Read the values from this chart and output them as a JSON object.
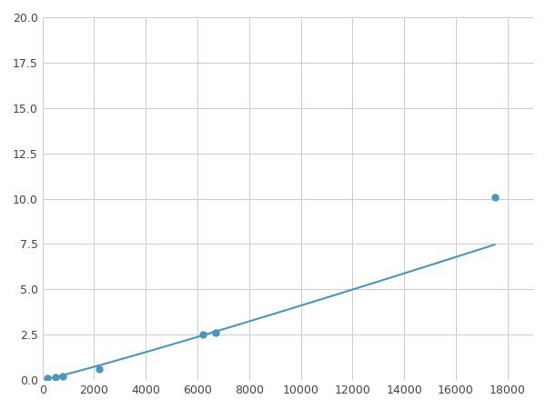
{
  "x": [
    200,
    500,
    800,
    2200,
    6200,
    6700,
    17500
  ],
  "y": [
    0.1,
    0.15,
    0.2,
    0.6,
    2.5,
    2.6,
    10.1
  ],
  "line_color": "#4a96bc",
  "marker_color": "#4a96bc",
  "marker_size": 5,
  "line_width": 1.5,
  "xlim": [
    0,
    19000
  ],
  "ylim": [
    0,
    20
  ],
  "xticks": [
    0,
    2000,
    4000,
    6000,
    8000,
    10000,
    12000,
    14000,
    16000,
    18000
  ],
  "yticks": [
    0.0,
    2.5,
    5.0,
    7.5,
    10.0,
    12.5,
    15.0,
    17.5,
    20.0
  ],
  "grid_color": "#cccccc",
  "background_color": "#ffffff",
  "fig_width": 6.0,
  "fig_height": 4.5,
  "dpi": 100
}
